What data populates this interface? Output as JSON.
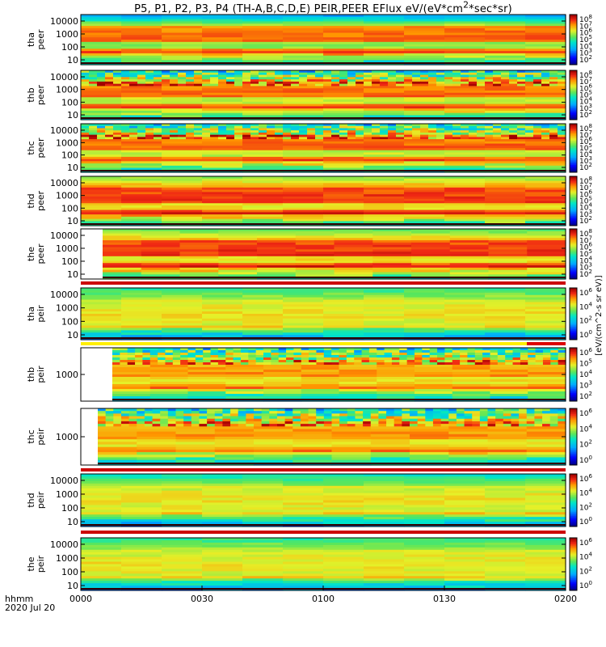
{
  "chart_data": {
    "type": "heatmap",
    "title": "P5, P1, P2, P3, P4 (TH-A,B,C,D,E) PEIR,PEER EFlux eV/(eV*cm^2*sec*sr)",
    "colorbar_label": "[eV/(cm^2-s sr eV)]",
    "time_ticks": [
      "0000",
      "0030",
      "0100",
      "0130",
      "0200"
    ],
    "time_label_line1": "hhmm",
    "time_label_line2": "2020 Jul 20",
    "panels": [
      {
        "id": "tha_peer",
        "ylabel_top": "tha",
        "ylabel_bottom": "peer",
        "yticks": [
          "10000",
          "1000",
          "100",
          "10"
        ],
        "cbar_ticks": [
          "10^8",
          "10^7",
          "10^6",
          "10^5",
          "10^4",
          "10^3",
          "10^2"
        ],
        "base_level": 0.85,
        "mid_band_level": 0.3,
        "low_band_level": 0.15,
        "left_blank_fraction": 0,
        "noise_top": false
      },
      {
        "id": "thb_peer",
        "ylabel_top": "thb",
        "ylabel_bottom": "peer",
        "yticks": [
          "10000",
          "1000",
          "100",
          "10"
        ],
        "cbar_ticks": [
          "10^8",
          "10^7",
          "10^6",
          "10^5",
          "10^4",
          "10^3",
          "10^2"
        ],
        "base_level": 0.85,
        "mid_band_level": 0.45,
        "low_band_level": 0.2,
        "left_blank_fraction": 0,
        "noise_top": true
      },
      {
        "id": "thc_peer",
        "ylabel_top": "thc",
        "ylabel_bottom": "peer",
        "yticks": [
          "10000",
          "1000",
          "100",
          "10"
        ],
        "cbar_ticks": [
          "10^8",
          "10^7",
          "10^6",
          "10^5",
          "10^4",
          "10^3",
          "10^2"
        ],
        "base_level": 0.85,
        "mid_band_level": 0.45,
        "low_band_level": 0.2,
        "left_blank_fraction": 0,
        "noise_top": true
      },
      {
        "id": "thd_peer",
        "ylabel_top": "thd",
        "ylabel_bottom": "peer",
        "yticks": [
          "10000",
          "1000",
          "100",
          "10"
        ],
        "cbar_ticks": [
          "10^8",
          "10^7",
          "10^6",
          "10^5",
          "10^4",
          "10^3",
          "10^2"
        ],
        "base_level": 0.9,
        "mid_band_level": 0.6,
        "low_band_level": 0.25,
        "left_blank_fraction": 0,
        "noise_top": false
      },
      {
        "id": "the_peer",
        "ylabel_top": "the",
        "ylabel_bottom": "peer",
        "yticks": [
          "10000",
          "1000",
          "100",
          "10"
        ],
        "cbar_ticks": [
          "10^8",
          "10^7",
          "10^6",
          "10^5",
          "10^4",
          "10^3",
          "10^2"
        ],
        "base_level": 0.9,
        "mid_band_level": 0.55,
        "low_band_level": 0.25,
        "left_blank_fraction": 0.045,
        "noise_top": false
      },
      {
        "id": "tha_peir",
        "ylabel_top": "tha",
        "ylabel_bottom": "peir",
        "yticks": [
          "10000",
          "1000",
          "100",
          "10"
        ],
        "cbar_ticks": [
          "10^6",
          "10^4",
          "10^2",
          "10^0"
        ],
        "base_level": 0.7,
        "mid_band_level": 0.5,
        "low_band_level": 0.35,
        "left_blank_fraction": 0,
        "noise_top": false
      },
      {
        "id": "thb_peir",
        "ylabel_top": "thb",
        "ylabel_bottom": "peir",
        "yticks": [
          "1000"
        ],
        "cbar_ticks": [
          "10^6",
          "10^5",
          "10^4",
          "10^3",
          "10^2"
        ],
        "base_level": 0.8,
        "mid_band_level": 0.45,
        "low_band_level": 0.25,
        "left_blank_fraction": 0.065,
        "noise_top": true
      },
      {
        "id": "thc_peir",
        "ylabel_top": "thc",
        "ylabel_bottom": "peir",
        "yticks": [
          "1000"
        ],
        "cbar_ticks": [
          "10^6",
          "10^4",
          "10^2",
          "10^0"
        ],
        "base_level": 0.8,
        "mid_band_level": 0.45,
        "low_band_level": 0.25,
        "left_blank_fraction": 0.035,
        "noise_top": true
      },
      {
        "id": "thd_peir",
        "ylabel_top": "thd",
        "ylabel_bottom": "peir",
        "yticks": [
          "10000",
          "1000",
          "100",
          "10"
        ],
        "cbar_ticks": [
          "10^6",
          "10^4",
          "10^2",
          "10^0"
        ],
        "base_level": 0.7,
        "mid_band_level": 0.45,
        "low_band_level": 0.3,
        "left_blank_fraction": 0,
        "noise_top": false
      },
      {
        "id": "the_peir",
        "ylabel_top": "the",
        "ylabel_bottom": "peir",
        "yticks": [
          "10000",
          "1000",
          "100",
          "10"
        ],
        "cbar_ticks": [
          "10^6",
          "10^4",
          "10^2",
          "10^0"
        ],
        "base_level": 0.7,
        "mid_band_level": 0.5,
        "low_band_level": 0.35,
        "left_blank_fraction": 0,
        "noise_top": false
      }
    ]
  }
}
